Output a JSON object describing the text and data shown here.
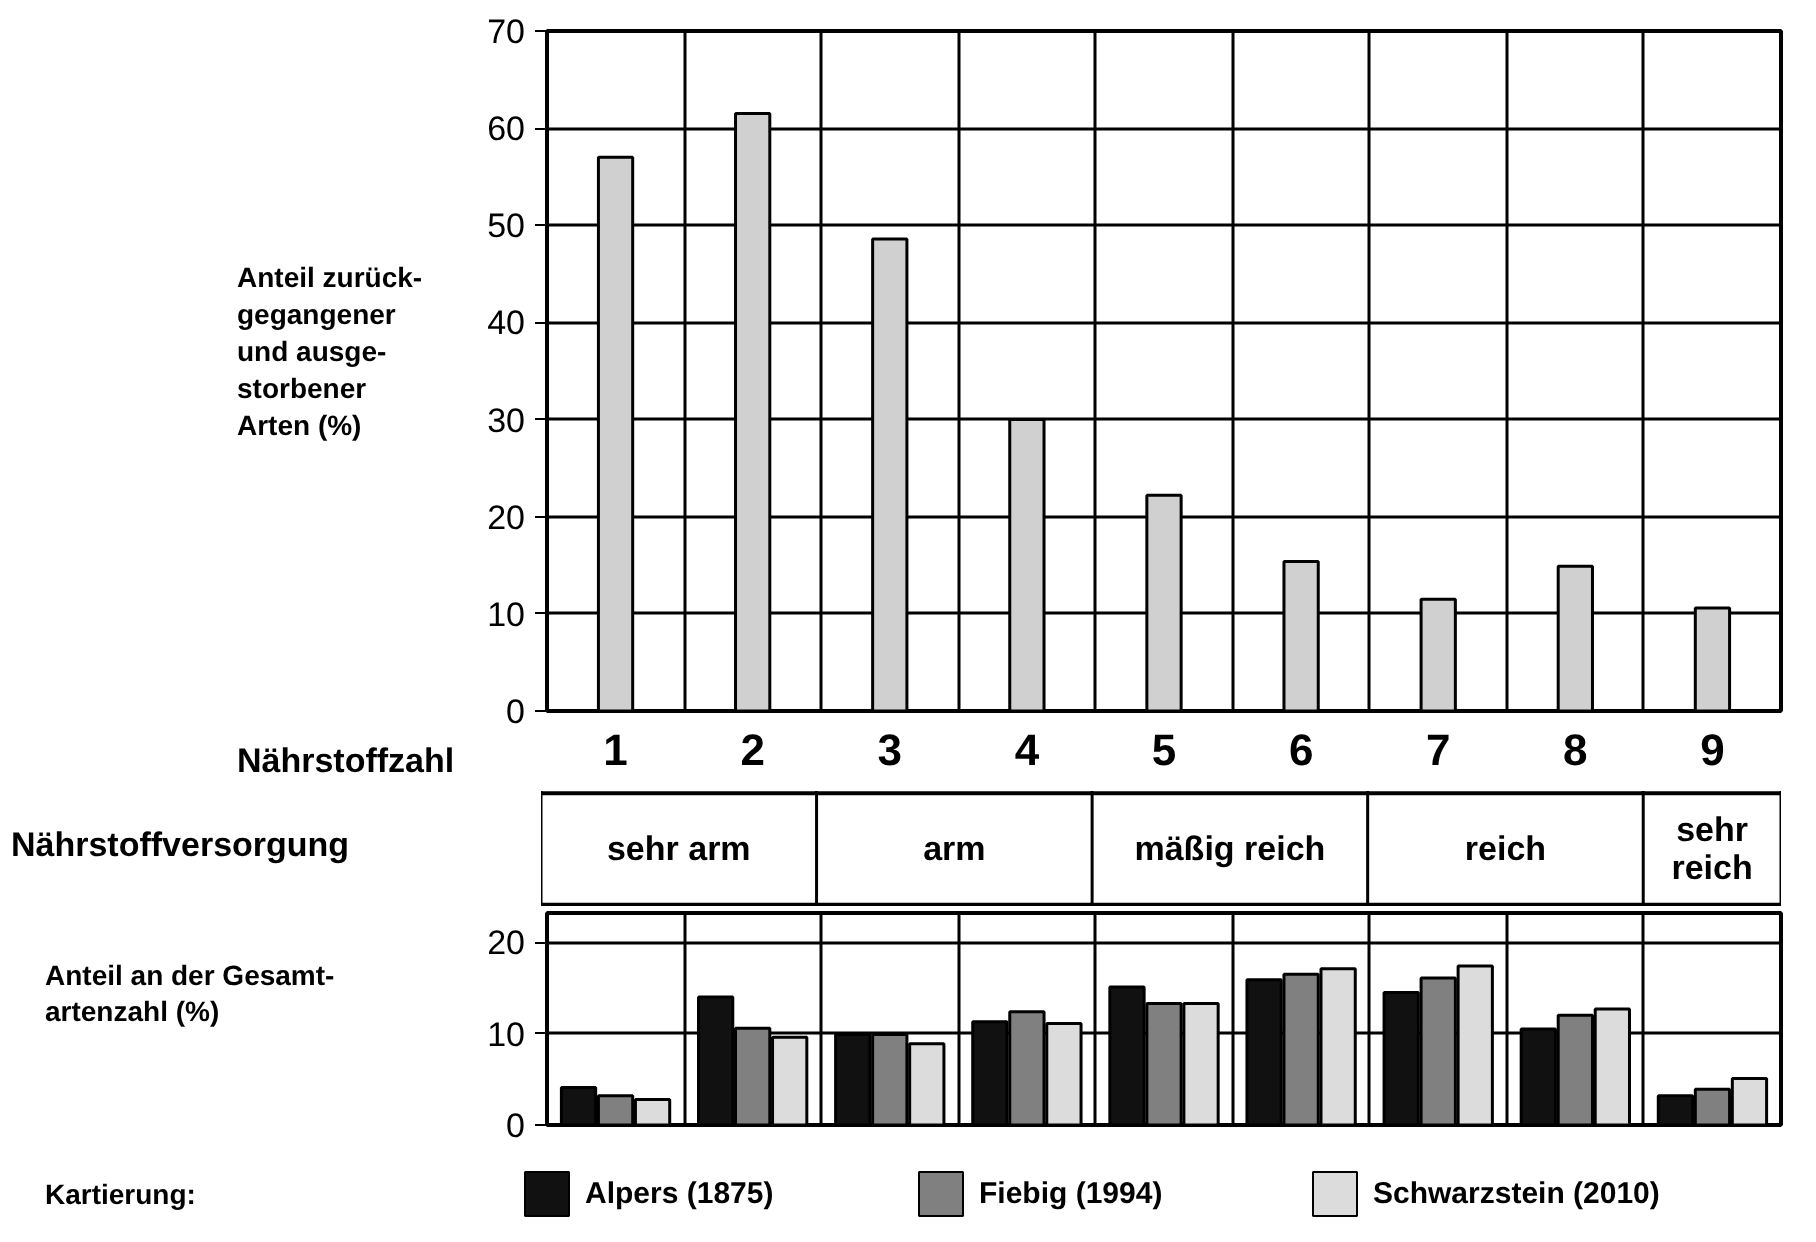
{
  "chart_data": [
    {
      "type": "bar",
      "xlabel": "Nährstoffzahl",
      "ylabel": "Anteil zurück-\ngegangener\nund ausge-\nstorbener\nArten (%)",
      "categories": [
        "1",
        "2",
        "3",
        "4",
        "5",
        "6",
        "7",
        "8",
        "9"
      ],
      "series": [
        {
          "color": "#d0d0d0",
          "values": [
            57.0,
            61.5,
            48.6,
            30.0,
            22.2,
            15.4,
            11.5,
            14.9,
            10.6
          ]
        }
      ],
      "ylim": [
        0,
        70
      ],
      "yticks": [
        0,
        10,
        20,
        30,
        40,
        50,
        60,
        70
      ],
      "grid": true,
      "annotations": [
        "Nährstoffversorgung",
        "sehr arm",
        "arm",
        "mäßig reich",
        "reich",
        "sehr\nreich"
      ]
    },
    {
      "type": "bar",
      "ylabel": "Anteil an der Gesamt-\nartenzahl (%)",
      "categories": [
        "1",
        "2",
        "3",
        "4",
        "5",
        "6",
        "7",
        "8",
        "9"
      ],
      "series": [
        {
          "name": "Alpers (1875)",
          "color": "#111111",
          "values": [
            4.1,
            14.0,
            9.9,
            11.3,
            15.1,
            15.9,
            14.5,
            10.5,
            3.2
          ]
        },
        {
          "name": "Fiebig (1994)",
          "color": "#808080",
          "values": [
            3.2,
            10.6,
            9.9,
            12.4,
            13.3,
            16.5,
            16.1,
            12.0,
            3.9
          ]
        },
        {
          "name": "Schwarzstein (2010)",
          "color": "#dcdcdc",
          "values": [
            2.8,
            9.6,
            8.9,
            11.1,
            13.3,
            17.1,
            17.4,
            12.7,
            5.1
          ]
        }
      ],
      "ylim": [
        0,
        23.2
      ],
      "yticks": [
        0,
        10,
        20
      ],
      "grid": true,
      "tick_labels": "y",
      "legend": "bottom",
      "legend_title": "Kartierung:"
    }
  ]
}
